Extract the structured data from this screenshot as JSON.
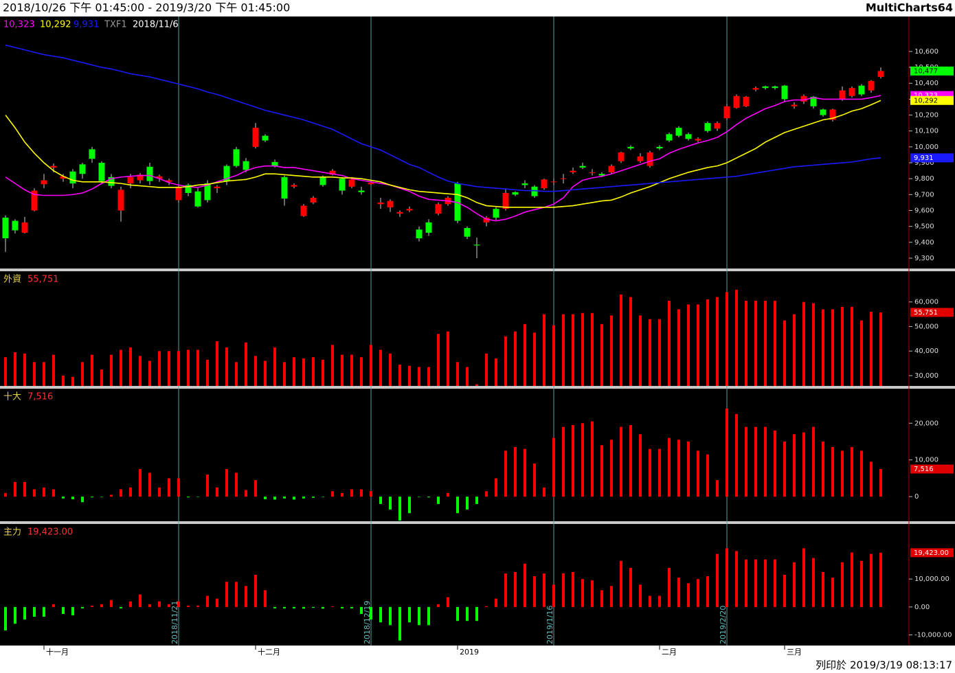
{
  "header": {
    "range": "2018/10/26 下午 01:45:00 - 2019/3/20 下午 01:45:00",
    "brand": "MultiCharts64"
  },
  "footer": {
    "printed": "列印於 2019/3/19 08:13:17"
  },
  "chart_data": [
    {
      "type": "candlestick",
      "symbol": "TXF1",
      "date": "2018/11/6",
      "up_color": "#ff0000",
      "down_color": "#00ff00",
      "close_label": "10,477",
      "open": [
        9555,
        9535,
        9460,
        9600,
        9765,
        9870,
        9800,
        9845,
        9890,
        9985,
        9900,
        9810,
        9600,
        9770,
        9790,
        9875,
        9800,
        9780,
        9665,
        9760,
        9720,
        9770,
        9740,
        9880,
        9985,
        9910,
        10000,
        10070,
        9905,
        9810,
        9750,
        9565,
        9650,
        9810,
        9825,
        9800,
        9750,
        9725,
        9765,
        9640,
        9620,
        9580,
        9600,
        9480,
        9525,
        9580,
        9640,
        9770,
        9490,
        9385,
        9525,
        9610,
        9610,
        9715,
        9770,
        9750,
        9740,
        9780,
        9800,
        9840,
        9880,
        9835,
        9830,
        9840,
        9910,
        10000,
        9910,
        9880,
        10000,
        10080,
        10120,
        10080,
        10040,
        10150,
        10115,
        10180,
        10245,
        10255,
        10360,
        10380,
        10380,
        10385,
        10255,
        10285,
        10315,
        10235,
        10170,
        10300,
        10320,
        10385,
        10355,
        10440
      ],
      "high": [
        9570,
        9545,
        9560,
        9740,
        9830,
        9895,
        9830,
        9860,
        9900,
        10000,
        9910,
        9830,
        9750,
        9830,
        9835,
        9900,
        9825,
        9800,
        9760,
        9770,
        9740,
        9790,
        9760,
        9890,
        10000,
        9930,
        10150,
        10080,
        9920,
        9820,
        9770,
        9640,
        9690,
        9820,
        9860,
        9810,
        9810,
        9750,
        9790,
        9680,
        9670,
        9600,
        9625,
        9500,
        9545,
        9650,
        9690,
        9780,
        9500,
        9430,
        9565,
        9620,
        9740,
        9720,
        9790,
        9760,
        9800,
        9800,
        9830,
        9870,
        9900,
        9860,
        9840,
        9890,
        9970,
        10010,
        9960,
        9975,
        10010,
        10090,
        10130,
        10090,
        10060,
        10160,
        10160,
        10270,
        10330,
        10320,
        10380,
        10385,
        10385,
        10390,
        10280,
        10330,
        10320,
        10240,
        10240,
        10380,
        10380,
        10395,
        10420,
        10500
      ],
      "low": [
        9340,
        9455,
        9455,
        9595,
        9740,
        9840,
        9780,
        9740,
        9800,
        9900,
        9770,
        9740,
        9530,
        9740,
        9770,
        9760,
        9780,
        9760,
        9650,
        9690,
        9620,
        9650,
        9710,
        9760,
        9870,
        9840,
        9990,
        10030,
        9870,
        9630,
        9740,
        9560,
        9640,
        9750,
        9820,
        9700,
        9740,
        9700,
        9760,
        9610,
        9590,
        9560,
        9590,
        9405,
        9440,
        9570,
        9630,
        9520,
        9420,
        9300,
        9500,
        9540,
        9600,
        9690,
        9740,
        9680,
        9730,
        9760,
        9770,
        9830,
        9860,
        9820,
        9810,
        9830,
        9900,
        9980,
        9900,
        9870,
        9980,
        10030,
        10060,
        10040,
        10030,
        10090,
        10100,
        10170,
        10240,
        10250,
        10350,
        10360,
        10360,
        10280,
        10240,
        10270,
        10240,
        10190,
        10160,
        10290,
        10310,
        10320,
        10340,
        10430
      ],
      "close": [
        9425,
        9475,
        9525,
        9725,
        9790,
        9880,
        9815,
        9770,
        9830,
        9925,
        9785,
        9755,
        9730,
        9810,
        9825,
        9785,
        9815,
        9790,
        9750,
        9710,
        9625,
        9665,
        9750,
        9785,
        9880,
        9855,
        10120,
        10040,
        9880,
        9675,
        9760,
        9630,
        9680,
        9760,
        9850,
        9725,
        9795,
        9715,
        9775,
        9650,
        9660,
        9590,
        9610,
        9425,
        9460,
        9640,
        9680,
        9535,
        9435,
        9380,
        9555,
        9555,
        9710,
        9700,
        9760,
        9690,
        9795,
        9782,
        9802,
        9850,
        9870,
        9840,
        9820,
        9880,
        9965,
        9990,
        9940,
        9965,
        9990,
        10040,
        10070,
        10050,
        10050,
        10100,
        10150,
        10255,
        10320,
        10315,
        10370,
        10370,
        10370,
        10300,
        10265,
        10320,
        10255,
        10200,
        10235,
        10355,
        10370,
        10330,
        10415,
        10477
      ],
      "series": [
        {
          "color": "#ff00ff",
          "last_label": "10,323",
          "values": [
            9810,
            9770,
            9730,
            9700,
            9695,
            9695,
            9695,
            9700,
            9710,
            9735,
            9770,
            9800,
            9810,
            9815,
            9820,
            9820,
            9800,
            9775,
            9760,
            9750,
            9745,
            9760,
            9780,
            9800,
            9820,
            9850,
            9870,
            9880,
            9880,
            9870,
            9870,
            9860,
            9850,
            9840,
            9830,
            9820,
            9800,
            9790,
            9780,
            9770,
            9760,
            9740,
            9720,
            9690,
            9670,
            9665,
            9660,
            9650,
            9620,
            9580,
            9545,
            9535,
            9545,
            9565,
            9590,
            9605,
            9620,
            9640,
            9680,
            9750,
            9790,
            9805,
            9815,
            9830,
            9850,
            9870,
            9890,
            9910,
            9925,
            9960,
            9985,
            10005,
            10025,
            10040,
            10060,
            10095,
            10140,
            10180,
            10210,
            10240,
            10260,
            10285,
            10295,
            10295,
            10310,
            10300,
            10300,
            10300,
            10300,
            10300,
            10310,
            10323
          ]
        },
        {
          "color": "#ffff00",
          "last_label": "10,292",
          "values": [
            10200,
            10120,
            10030,
            9960,
            9900,
            9850,
            9815,
            9790,
            9780,
            9780,
            9780,
            9775,
            9770,
            9760,
            9755,
            9750,
            9745,
            9745,
            9745,
            9750,
            9760,
            9765,
            9775,
            9785,
            9790,
            9795,
            9810,
            9830,
            9830,
            9825,
            9820,
            9815,
            9810,
            9810,
            9810,
            9805,
            9805,
            9800,
            9790,
            9780,
            9760,
            9745,
            9730,
            9720,
            9715,
            9710,
            9705,
            9700,
            9680,
            9650,
            9630,
            9625,
            9620,
            9620,
            9620,
            9620,
            9620,
            9620,
            9625,
            9630,
            9640,
            9650,
            9660,
            9665,
            9685,
            9710,
            9730,
            9750,
            9775,
            9800,
            9820,
            9840,
            9855,
            9870,
            9880,
            9900,
            9930,
            9960,
            9990,
            10030,
            10060,
            10090,
            10110,
            10130,
            10150,
            10170,
            10180,
            10200,
            10225,
            10240,
            10265,
            10292
          ]
        },
        {
          "color": "#1a1aff",
          "last_label": "9,931",
          "values": [
            10640,
            10625,
            10610,
            10595,
            10580,
            10570,
            10560,
            10545,
            10530,
            10515,
            10500,
            10490,
            10475,
            10460,
            10450,
            10440,
            10425,
            10410,
            10395,
            10380,
            10365,
            10345,
            10330,
            10310,
            10290,
            10270,
            10250,
            10230,
            10215,
            10200,
            10185,
            10170,
            10150,
            10130,
            10110,
            10080,
            10050,
            10020,
            10000,
            9980,
            9950,
            9920,
            9890,
            9870,
            9840,
            9810,
            9785,
            9770,
            9760,
            9750,
            9745,
            9740,
            9735,
            9730,
            9725,
            9725,
            9720,
            9720,
            9725,
            9730,
            9735,
            9740,
            9745,
            9750,
            9755,
            9760,
            9765,
            9770,
            9775,
            9780,
            9785,
            9790,
            9795,
            9800,
            9805,
            9810,
            9815,
            9825,
            9835,
            9845,
            9855,
            9865,
            9875,
            9880,
            9885,
            9890,
            9895,
            9900,
            9905,
            9915,
            9925,
            9931
          ]
        }
      ],
      "ylim": [
        9235,
        10820
      ],
      "yticks": [
        {
          "value": 9300,
          "label": "9,300"
        },
        {
          "value": 9400,
          "label": "9,400"
        },
        {
          "value": 9500,
          "label": "9,500"
        },
        {
          "value": 9600,
          "label": "9,600"
        },
        {
          "value": 9700,
          "label": "9,700"
        },
        {
          "value": 9800,
          "label": "9,800"
        },
        {
          "value": 9900,
          "label": "9,900"
        },
        {
          "value": 10000,
          "label": "10,000"
        },
        {
          "value": 10100,
          "label": "10,100"
        },
        {
          "value": 10200,
          "label": "10,200"
        },
        {
          "value": 10300,
          "label": "10,300"
        },
        {
          "value": 10400,
          "label": "10,400"
        },
        {
          "value": 10500,
          "label": "10,500"
        },
        {
          "value": 10600,
          "label": "10,600"
        }
      ]
    },
    {
      "type": "bar",
      "title": "外資",
      "value_label": "55,751",
      "color": "#ff0000",
      "negative_color": "#00ff00",
      "values": [
        37500,
        39500,
        39000,
        35500,
        35500,
        38500,
        30000,
        29500,
        35500,
        38500,
        32500,
        38500,
        40500,
        41500,
        38000,
        36000,
        40000,
        40000,
        40000,
        40500,
        40500,
        36500,
        44000,
        41500,
        35500,
        43500,
        38000,
        36000,
        41500,
        35500,
        37500,
        37000,
        37500,
        36500,
        42500,
        38500,
        38500,
        37500,
        42500,
        40500,
        39000,
        34500,
        34000,
        33500,
        33500,
        47000,
        48000,
        35500,
        33500,
        26500,
        39000,
        37000,
        46000,
        48000,
        51000,
        47500,
        55000,
        50500,
        55000,
        55000,
        55500,
        55500,
        51000,
        54500,
        63000,
        62000,
        54500,
        53000,
        53000,
        60500,
        57000,
        59000,
        59000,
        61000,
        62000,
        64000,
        65000,
        60500,
        60500,
        60500,
        60500,
        52500,
        55000,
        60000,
        59500,
        57000,
        57000,
        58000,
        58000,
        52500,
        56000,
        55751
      ],
      "ylim": [
        25800,
        72500
      ],
      "yticks": [
        {
          "value": 30000,
          "label": "30,000"
        },
        {
          "value": 40000,
          "label": "40,000"
        },
        {
          "value": 50000,
          "label": "50,000"
        },
        {
          "value": 60000,
          "label": "60,000"
        }
      ]
    },
    {
      "type": "bar",
      "title": "十大",
      "value_label": "7,516",
      "color": "#ff0000",
      "negative_color": "#00ff00",
      "values": [
        1000,
        4000,
        4000,
        2000,
        2500,
        2000,
        -500,
        -700,
        -1500,
        -200,
        -100,
        500,
        2000,
        2500,
        7500,
        6500,
        2500,
        5000,
        5000,
        -200,
        -100,
        6000,
        2500,
        7500,
        6500,
        1800,
        4500,
        -700,
        -800,
        -500,
        -800,
        -500,
        -300,
        -100,
        1500,
        1000,
        2000,
        2000,
        1500,
        -2000,
        -3500,
        -6500,
        -4500,
        -100,
        -200,
        -2000,
        1000,
        -4500,
        -3500,
        -2000,
        1500,
        5000,
        12500,
        13500,
        13000,
        9000,
        2500,
        16000,
        19000,
        19500,
        20000,
        20500,
        14000,
        15500,
        19000,
        19500,
        17000,
        13000,
        13000,
        16000,
        15500,
        15000,
        12500,
        11500,
        4500,
        24000,
        22500,
        19000,
        19000,
        19000,
        18000,
        15000,
        17000,
        17500,
        19000,
        15000,
        13500,
        12500,
        13500,
        12500,
        9500,
        7516
      ],
      "ylim": [
        -6700,
        29400
      ],
      "yticks": [
        0,
        {
          "value": 10000,
          "label": "10,000"
        },
        {
          "value": 20000,
          "label": "20,000"
        }
      ]
    },
    {
      "type": "bar",
      "title": "主力",
      "value_label": "19,423.00",
      "color": "#ff0000",
      "negative_color": "#00ff00",
      "values": [
        -8400,
        -6000,
        -4500,
        -3500,
        -3500,
        1000,
        -2500,
        -3000,
        -500,
        500,
        1000,
        2500,
        -500,
        2000,
        4500,
        1000,
        2000,
        1000,
        2000,
        500,
        500,
        4000,
        3000,
        9000,
        9000,
        7500,
        11500,
        6000,
        -500,
        -500,
        -500,
        -600,
        -300,
        -600,
        200,
        -500,
        -500,
        -2500,
        -4500,
        -5500,
        -6500,
        -12000,
        -5500,
        -6500,
        -6500,
        1000,
        3500,
        -5000,
        -5000,
        -5000,
        300,
        3000,
        12000,
        12500,
        15500,
        11000,
        12000,
        8000,
        12000,
        12500,
        10000,
        9500,
        6000,
        7500,
        16500,
        14000,
        8000,
        4000,
        4000,
        14000,
        10500,
        8500,
        10000,
        11000,
        19000,
        21000,
        20000,
        17000,
        17000,
        17000,
        17000,
        11500,
        16000,
        21000,
        17500,
        12500,
        10500,
        16000,
        19500,
        16500,
        19000,
        19423
      ],
      "ylim": [
        -13800,
        29700
      ],
      "yticks": [
        {
          "value": -10000,
          "label": "-10,000.00"
        },
        {
          "value": 0,
          "label": "0.00"
        },
        {
          "value": 10000,
          "label": "10,000.00"
        }
      ],
      "categories": [
        null,
        null,
        null,
        null,
        "十一月",
        null,
        null,
        null,
        null,
        null,
        null,
        null,
        null,
        null,
        null,
        null,
        null,
        null,
        null,
        null,
        null,
        null,
        null,
        null,
        null,
        null,
        "十二月",
        null,
        null,
        null,
        null,
        null,
        null,
        null,
        null,
        null,
        null,
        null,
        null,
        null,
        null,
        null,
        null,
        null,
        null,
        null,
        null,
        "2019",
        null,
        null,
        null,
        null,
        null,
        null,
        null,
        null,
        null,
        null,
        null,
        null,
        null,
        null,
        null,
        null,
        null,
        null,
        null,
        null,
        "二月",
        null,
        null,
        null,
        null,
        null,
        null,
        null,
        null,
        null,
        null,
        null,
        null,
        "三月",
        null,
        null,
        null,
        null,
        null,
        null,
        null,
        null,
        null,
        null
      ],
      "vline_labels": [
        "2018/11/21",
        "2018/12/19",
        "2019/1/16",
        "2019/2/20"
      ]
    }
  ]
}
